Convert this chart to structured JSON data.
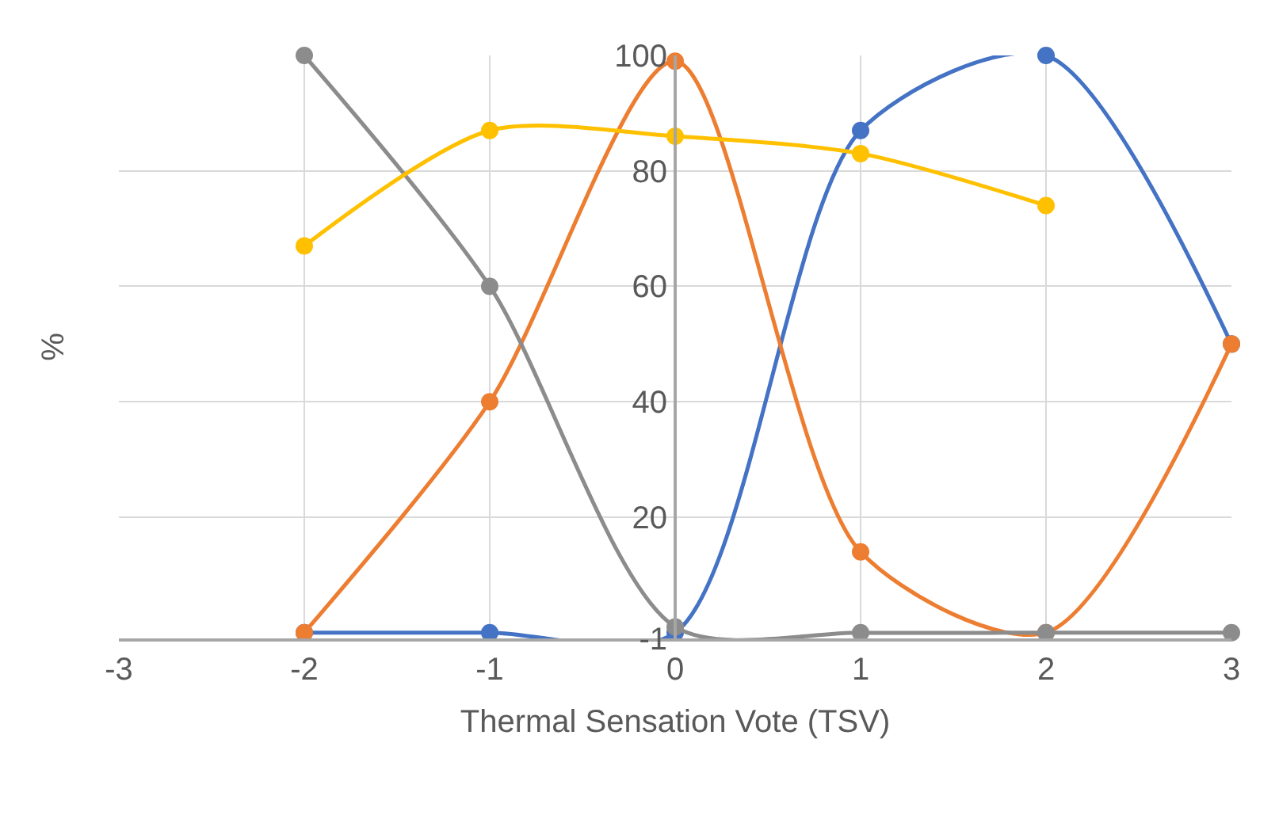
{
  "chart_data": {
    "type": "line",
    "xlabel": "Thermal Sensation Vote (TSV)",
    "ylabel": "%",
    "x": [
      -2,
      -1,
      0,
      1,
      2,
      3
    ],
    "series": [
      {
        "color": "#4472c4",
        "values": [
          0,
          0,
          0,
          87,
          100,
          50
        ]
      },
      {
        "color": "#ed7d31",
        "values": [
          0,
          40,
          99,
          14,
          0,
          50
        ]
      },
      {
        "color": "#8c8c8c",
        "values": [
          100,
          60,
          1,
          0,
          0,
          0
        ]
      },
      {
        "color": "#ffc000",
        "values": [
          67,
          87,
          86,
          83,
          74,
          null
        ]
      }
    ],
    "xlim": [
      -3,
      3
    ],
    "xticks": [
      -3,
      -2,
      -1,
      0,
      1,
      2,
      3
    ],
    "ylim": [
      -1,
      100
    ],
    "yticks": [
      -1,
      20,
      40,
      60,
      80,
      100
    ],
    "grid": true,
    "marker": "circle",
    "line_style": "solid"
  }
}
